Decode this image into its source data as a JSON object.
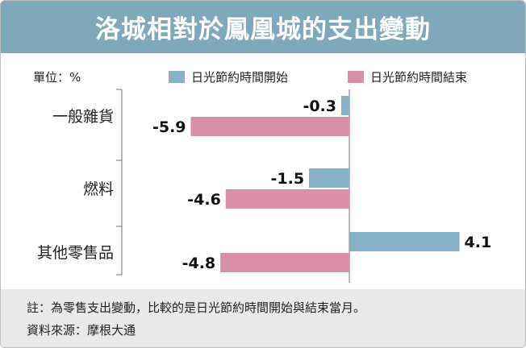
{
  "title": "洛城相對於鳳凰城的支出變動",
  "unit_label": "單位：%",
  "note": "註：為零售支出變動，比較的是日光節約時間開始與結束當月。",
  "source": "資料來源：摩根大通",
  "colors": {
    "title_bar": "#7fa9bb",
    "series_start": "#86b1c7",
    "series_end": "#d98fa8",
    "footer": "#e9e9e9"
  },
  "chart_data": {
    "type": "bar",
    "orientation": "horizontal",
    "title": "洛城相對於鳳凰城的支出變動",
    "unit": "%",
    "categories": [
      "一般雜貨",
      "燃料",
      "其他零售品"
    ],
    "series": [
      {
        "name": "日光節約時間開始",
        "values": [
          -0.3,
          -1.5,
          4.1
        ]
      },
      {
        "name": "日光節約時間結束",
        "values": [
          -5.9,
          -4.6,
          -4.8
        ]
      }
    ],
    "xlim": [
      -6.2,
      4.6
    ],
    "legend": "top",
    "grid": false
  }
}
